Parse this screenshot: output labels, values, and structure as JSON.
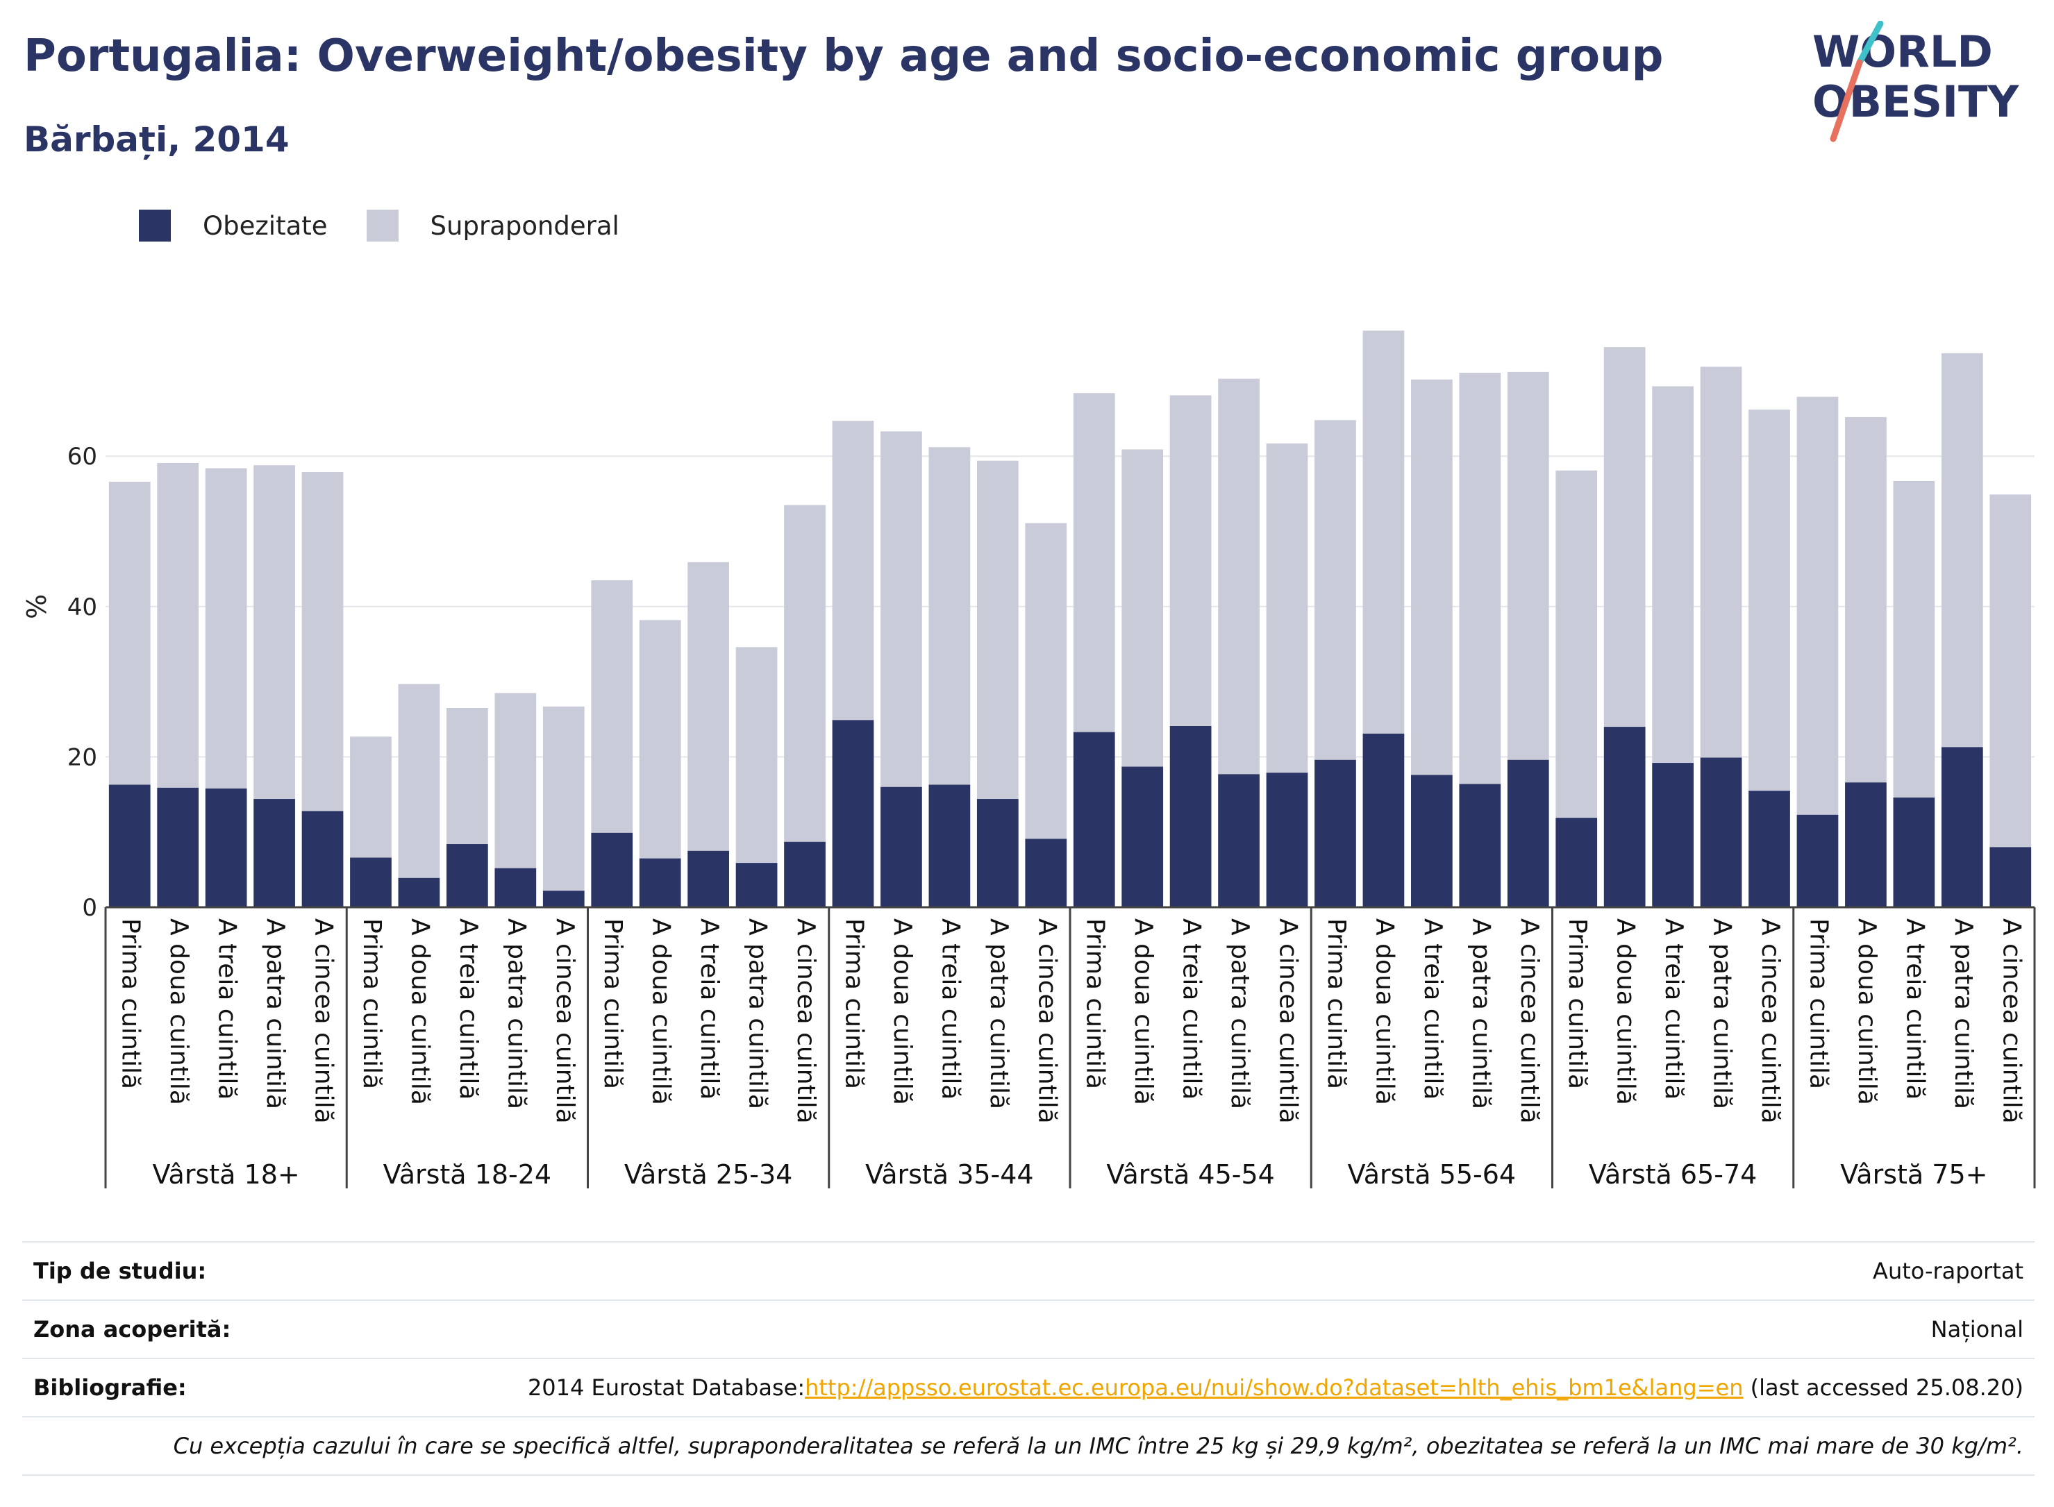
{
  "header": {
    "title": "Portugalia: Overweight/obesity by age and socio-economic group",
    "subtitle": "Bărbați, 2014"
  },
  "logo": {
    "line1": "WORLD",
    "line2": "OBESITY"
  },
  "legend": [
    {
      "name": "Obezitate",
      "color": "#2b3565"
    },
    {
      "name": "Supraponderal",
      "color": "#cacbd8"
    }
  ],
  "chart_data": {
    "type": "bar",
    "stacked": true,
    "ylabel": "%",
    "ylim": [
      0,
      80
    ],
    "yticks": [
      0,
      20,
      40,
      60
    ],
    "grid": true,
    "legend_position": "top-left",
    "groups": [
      "Vârstă 18+",
      "Vârstă 18-24",
      "Vârstă 25-34",
      "Vârstă 35-44",
      "Vârstă 45-54",
      "Vârstă 55-64",
      "Vârstă 65-74",
      "Vârstă 75+"
    ],
    "categories": [
      "Prima cuintilă",
      "A doua cuintilă",
      "A treia cuintilă",
      "A patra cuintilă",
      "A cincea cuintilă"
    ],
    "series": [
      {
        "name": "Obezitate",
        "color": "#2b3565",
        "values": [
          [
            16.3,
            15.9,
            15.8,
            14.4,
            12.8
          ],
          [
            6.6,
            3.9,
            8.4,
            5.2,
            2.2
          ],
          [
            9.9,
            6.5,
            7.5,
            5.9,
            8.7
          ],
          [
            24.9,
            16.0,
            16.3,
            14.4,
            9.1
          ],
          [
            23.3,
            18.7,
            24.1,
            17.7,
            17.9
          ],
          [
            19.6,
            23.1,
            17.6,
            16.4,
            19.6
          ],
          [
            11.9,
            24.0,
            19.2,
            19.9,
            15.5
          ],
          [
            12.3,
            16.6,
            14.6,
            21.3,
            8.0
          ]
        ]
      },
      {
        "name": "Supraponderal",
        "color": "#cacbd8",
        "values": [
          [
            40.3,
            43.2,
            42.6,
            44.4,
            45.1
          ],
          [
            16.1,
            25.8,
            18.1,
            23.3,
            24.5
          ],
          [
            33.6,
            31.7,
            38.4,
            28.7,
            44.8
          ],
          [
            39.8,
            47.3,
            44.9,
            45.0,
            42.0
          ],
          [
            45.1,
            42.2,
            44.0,
            52.6,
            43.8
          ],
          [
            45.2,
            53.6,
            52.6,
            54.7,
            51.6
          ],
          [
            46.2,
            50.5,
            50.1,
            52.0,
            50.7
          ],
          [
            55.6,
            48.6,
            42.1,
            52.4,
            46.9
          ]
        ]
      }
    ]
  },
  "info": {
    "study_label": "Tip de studiu:",
    "study_value": "Auto-raportat",
    "coverage_label": "Zona acoperită:",
    "coverage_value": "Național",
    "bibliography_label": "Bibliografie:",
    "bibliography_prefix": "2014 Eurostat Database:",
    "bibliography_link": "http://appsso.eurostat.ec.europa.eu/nui/show.do?dataset=hlth_ehis_bm1e&lang=en",
    "bibliography_suffix": " (last accessed 25.08.20)",
    "note": "Cu excepția cazului în care se specifică altfel, supraponderalitatea se referă la un IMC între 25 kg și 29,9 kg/m², obezitatea se referă la un IMC mai mare de 30 kg/m²."
  }
}
